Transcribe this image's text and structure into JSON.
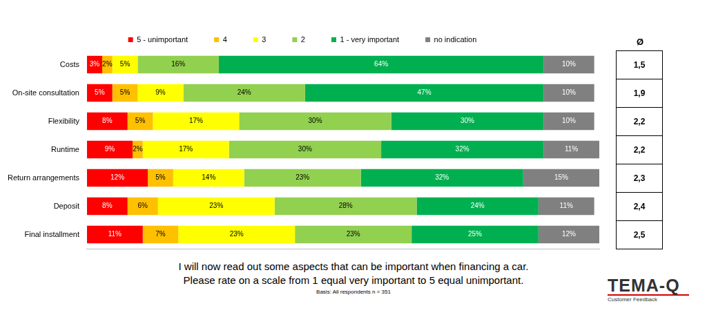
{
  "chart_data": {
    "type": "bar",
    "orientation": "horizontal",
    "stacked": true,
    "data_labels": true,
    "tick_labels": "y",
    "grid": false,
    "legend": "top",
    "categories": [
      "Costs",
      "On-site consultation",
      "Flexibility",
      "Runtime",
      "Return arrangements",
      "Deposit",
      "Final installment"
    ],
    "xlim": [
      0,
      101
    ],
    "series": [
      {
        "name": "5 - unimportant",
        "color": "#ff0000",
        "values": [
          3,
          5,
          8,
          9,
          12,
          8,
          11
        ],
        "value_labels": [
          "3%",
          "5%",
          "8%",
          "9%",
          "12%",
          "8%",
          "11%"
        ]
      },
      {
        "name": "4",
        "color": "#ffc000",
        "values": [
          2,
          5,
          5,
          2,
          5,
          6,
          7
        ],
        "value_labels": [
          "2%",
          "5%",
          "5%",
          "2%",
          "5%",
          "6%",
          "7%"
        ]
      },
      {
        "name": "3",
        "color": "#ffff00",
        "values": [
          5,
          9,
          17,
          17,
          14,
          23,
          23
        ],
        "value_labels": [
          "5%",
          "9%",
          "17%",
          "17%",
          "14%",
          "23%",
          "23%"
        ]
      },
      {
        "name": "2",
        "color": "#92d050",
        "values": [
          16,
          24,
          30,
          30,
          23,
          28,
          23
        ],
        "value_labels": [
          "16%",
          "24%",
          "30%",
          "30%",
          "23%",
          "28%",
          "23%"
        ]
      },
      {
        "name": "1 - very important",
        "color": "#00b050",
        "values": [
          64,
          47,
          30,
          32,
          32,
          24,
          25
        ],
        "value_labels": [
          "64%",
          "47%",
          "30%",
          "32%",
          "32%",
          "24%",
          "25%"
        ]
      },
      {
        "name": "no indication",
        "color": "#808080",
        "values": [
          10,
          10,
          10,
          11,
          15,
          11,
          12
        ],
        "value_labels": [
          "10%",
          "10%",
          "10%",
          "11%",
          "15%",
          "11%",
          "12%"
        ]
      }
    ],
    "average_header": "Ø",
    "averages": [
      1.5,
      1.9,
      2.2,
      2.2,
      2.3,
      2.4,
      2.5
    ],
    "average_labels": [
      "1,5",
      "1,9",
      "2,2",
      "2,2",
      "2,3",
      "2,4",
      "2,5"
    ],
    "caption": [
      "I will now read out some aspects that can be important when financing a car.",
      "Please rate on a scale from 1 equal very important to 5 equal unimportant."
    ],
    "basis": "Basis: All respondents n = 351",
    "logo": "TEMA-Q",
    "logo_subtitle": "Customer Feedback"
  }
}
